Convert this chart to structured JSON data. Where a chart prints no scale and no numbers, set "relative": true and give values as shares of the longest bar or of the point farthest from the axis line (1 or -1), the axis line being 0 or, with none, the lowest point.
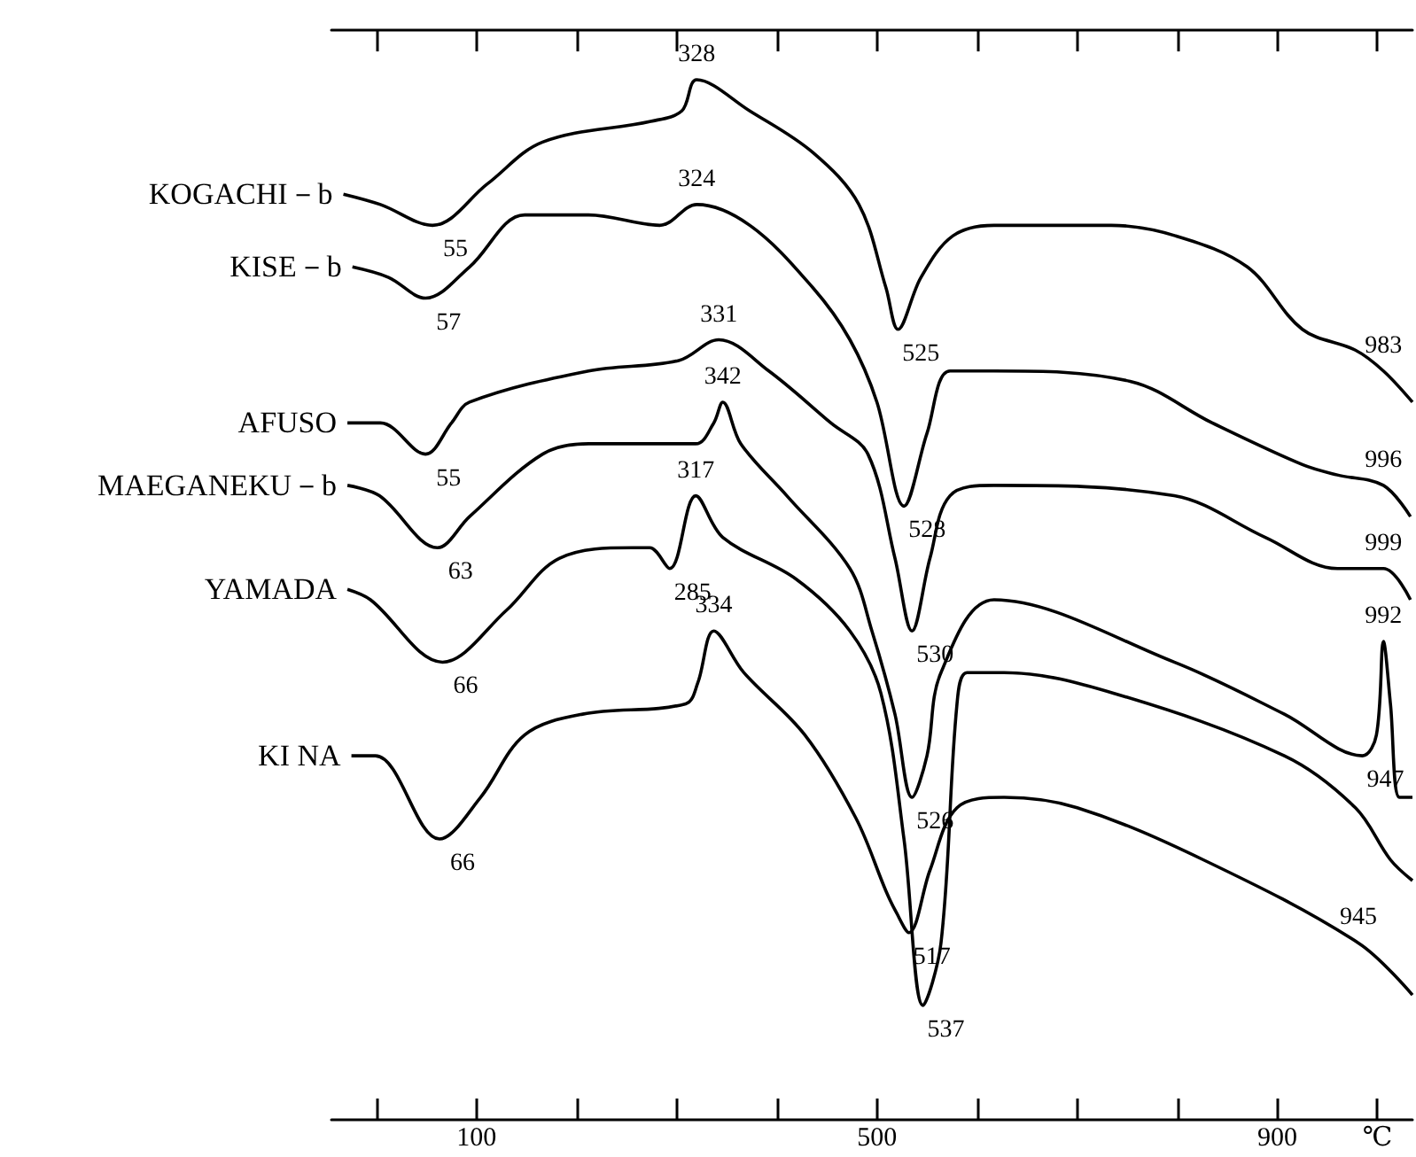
{
  "chart_data": {
    "type": "line",
    "relative": true,
    "marker": "none",
    "line_style": "solid",
    "xlim": [
      -45,
      1035
    ],
    "xticks": [
      {
        "value": 0,
        "label": null
      },
      100,
      {
        "value": 200,
        "label": null
      },
      {
        "value": 300,
        "label": null
      },
      {
        "value": 400,
        "label": null
      },
      500,
      {
        "value": 600,
        "label": null
      },
      {
        "value": 700,
        "label": null
      },
      {
        "value": 800,
        "label": null
      },
      900,
      {
        "value": 1000,
        "label": "℃"
      }
    ],
    "series": [
      {
        "name": "KOGACHI－b",
        "color": "#000000",
        "x": [
          -33,
          4,
          56,
          111,
          166,
          274,
          305,
          320,
          373,
          436,
          482,
          509,
          521,
          544,
          576,
          617,
          734,
          798,
          870,
          925,
          978,
          1006,
          1035
        ],
        "values": [
          0.89,
          0.88,
          0.86,
          0.9,
          0.94,
          0.96,
          0.97,
          1.0,
          0.97,
          0.93,
          0.88,
          0.8,
          0.76,
          0.81,
          0.85,
          0.86,
          0.86,
          0.85,
          0.82,
          0.76,
          0.74,
          0.72,
          0.69
        ]
      },
      {
        "name": "KISE－b",
        "color": "#000000",
        "x": [
          -24,
          12,
          49,
          93,
          148,
          212,
          283,
          320,
          373,
          436,
          473,
          500,
          527,
          550,
          573,
          617,
          753,
          835,
          925,
          960,
          1006,
          1033
        ],
        "values": [
          0.82,
          0.81,
          0.79,
          0.82,
          0.87,
          0.87,
          0.86,
          0.88,
          0.86,
          0.8,
          0.75,
          0.69,
          0.59,
          0.66,
          0.72,
          0.72,
          0.71,
          0.67,
          0.63,
          0.62,
          0.61,
          0.58
        ]
      },
      {
        "name": "AFUSO",
        "color": "#000000",
        "x": [
          -29,
          4,
          49,
          75,
          93,
          212,
          302,
          342,
          392,
          454,
          491,
          518,
          535,
          553,
          573,
          617,
          797,
          888,
          960,
          1006,
          1033
        ],
        "values": [
          0.67,
          0.67,
          0.64,
          0.67,
          0.69,
          0.72,
          0.73,
          0.75,
          0.72,
          0.67,
          0.64,
          0.54,
          0.47,
          0.54,
          0.6,
          0.61,
          0.6,
          0.56,
          0.53,
          0.53,
          0.5
        ]
      },
      {
        "name": "MAEGANEKU－b",
        "color": "#000000",
        "x": [
          -29,
          3,
          61,
          93,
          166,
          212,
          319,
          337,
          346,
          364,
          410,
          473,
          495,
          518,
          535,
          550,
          564,
          617,
          797,
          907,
          985,
          999,
          1006,
          1013,
          1022,
          1035
        ],
        "values": [
          0.61,
          0.6,
          0.55,
          0.58,
          0.64,
          0.65,
          0.65,
          0.67,
          0.69,
          0.65,
          0.6,
          0.53,
          0.47,
          0.39,
          0.31,
          0.35,
          0.43,
          0.5,
          0.44,
          0.39,
          0.35,
          0.37,
          0.46,
          0.4,
          0.31,
          0.31
        ]
      },
      {
        "name": "YAMADA",
        "color": "#000000",
        "x": [
          -29,
          -6,
          66,
          130,
          183,
          256,
          273,
          293,
          319,
          346,
          419,
          473,
          504,
          527,
          546,
          564,
          580,
          590,
          627,
          737,
          907,
          978,
          1013,
          1035
        ],
        "values": [
          0.51,
          0.5,
          0.44,
          0.49,
          0.54,
          0.55,
          0.55,
          0.53,
          0.6,
          0.56,
          0.52,
          0.47,
          0.41,
          0.27,
          0.11,
          0.17,
          0.4,
          0.43,
          0.43,
          0.41,
          0.35,
          0.3,
          0.25,
          0.23
        ]
      },
      {
        "name": "KI NA",
        "color": "#000000",
        "x": [
          -25,
          -1,
          63,
          104,
          148,
          206,
          309,
          321,
          337,
          367,
          428,
          479,
          509,
          519,
          532,
          553,
          580,
          627,
          700,
          826,
          981,
          1035
        ],
        "values": [
          0.35,
          0.35,
          0.27,
          0.31,
          0.37,
          0.39,
          0.4,
          0.42,
          0.47,
          0.43,
          0.37,
          0.29,
          0.22,
          0.2,
          0.18,
          0.24,
          0.3,
          0.31,
          0.3,
          0.25,
          0.17,
          0.12
        ]
      }
    ],
    "annotations": [
      {
        "text": "328",
        "x": 320,
        "y": 1.0
      },
      {
        "text": "55",
        "x": 56,
        "y": 0.86
      },
      {
        "text": "525",
        "x": 521,
        "y": 0.76
      },
      {
        "text": "983",
        "x": 1006,
        "y": 0.72
      },
      {
        "text": "324",
        "x": 320,
        "y": 0.88
      },
      {
        "text": "57",
        "x": 49,
        "y": 0.79
      },
      {
        "text": "528",
        "x": 527,
        "y": 0.59
      },
      {
        "text": "996",
        "x": 1006,
        "y": 0.61
      },
      {
        "text": "331",
        "x": 342,
        "y": 0.75
      },
      {
        "text": "55",
        "x": 49,
        "y": 0.64
      },
      {
        "text": "530",
        "x": 535,
        "y": 0.47
      },
      {
        "text": "999",
        "x": 1006,
        "y": 0.53
      },
      {
        "text": "342",
        "x": 346,
        "y": 0.69
      },
      {
        "text": "63",
        "x": 61,
        "y": 0.55
      },
      {
        "text": "526",
        "x": 535,
        "y": 0.31
      },
      {
        "text": "947",
        "x": 985,
        "y": 0.35
      },
      {
        "text": "992",
        "x": 1006,
        "y": 0.46
      },
      {
        "text": "317",
        "x": 319,
        "y": 0.6
      },
      {
        "text": "66",
        "x": 66,
        "y": 0.44
      },
      {
        "text": "285",
        "x": 293,
        "y": 0.53
      },
      {
        "text": "537",
        "x": 546,
        "y": 0.11
      },
      {
        "text": "334",
        "x": 337,
        "y": 0.47
      },
      {
        "text": "66",
        "x": 63,
        "y": 0.27
      },
      {
        "text": "517",
        "x": 532,
        "y": 0.18
      },
      {
        "text": "945",
        "x": 981,
        "y": 0.17
      }
    ]
  }
}
